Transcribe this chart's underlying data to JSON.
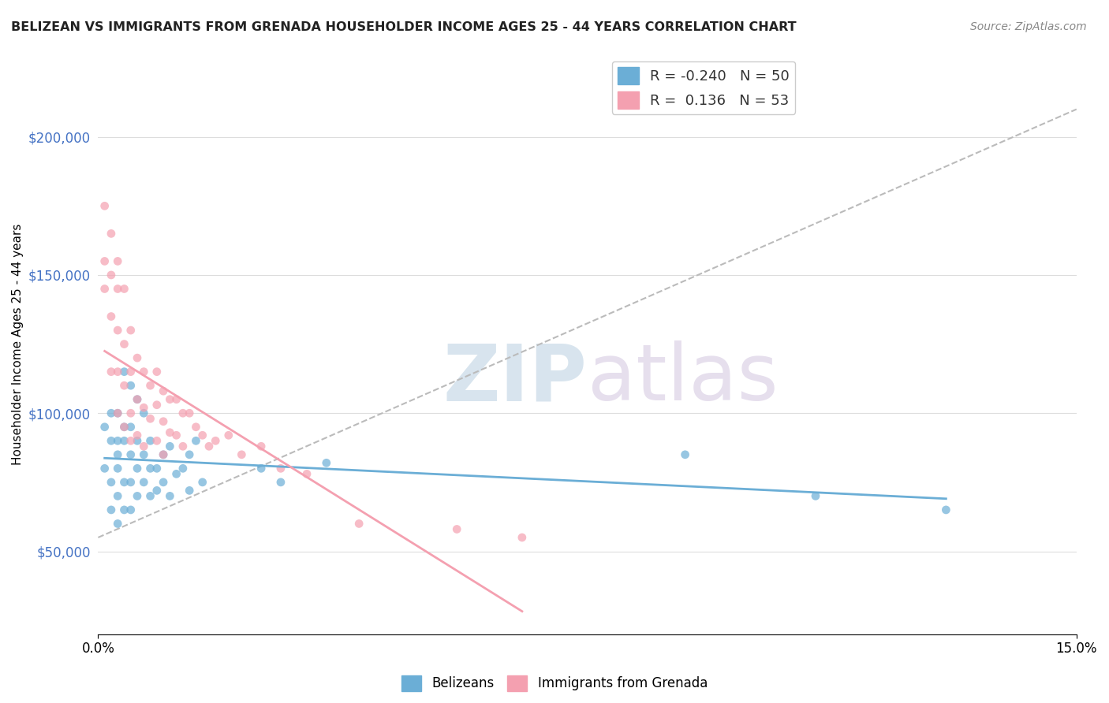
{
  "title": "BELIZEAN VS IMMIGRANTS FROM GRENADA HOUSEHOLDER INCOME AGES 25 - 44 YEARS CORRELATION CHART",
  "source_text": "Source: ZipAtlas.com",
  "xlabel": "",
  "ylabel": "Householder Income Ages 25 - 44 years",
  "xlim": [
    0.0,
    0.15
  ],
  "ylim": [
    20000,
    230000
  ],
  "yticks": [
    50000,
    100000,
    150000,
    200000
  ],
  "ytick_labels": [
    "$50,000",
    "$100,000",
    "$150,000",
    "$200,000"
  ],
  "xticks": [
    0.0,
    0.15
  ],
  "xtick_labels": [
    "0.0%",
    "15.0%"
  ],
  "watermark_zip": "ZIP",
  "watermark_atlas": "atlas",
  "belizean_color": "#6baed6",
  "grenada_color": "#f4a0b0",
  "belizean_r": -0.24,
  "grenada_r": 0.136,
  "background_color": "#ffffff",
  "grid_color": "#dddddd",
  "belizean_x": [
    0.001,
    0.001,
    0.002,
    0.002,
    0.002,
    0.002,
    0.003,
    0.003,
    0.003,
    0.003,
    0.003,
    0.003,
    0.004,
    0.004,
    0.004,
    0.004,
    0.004,
    0.005,
    0.005,
    0.005,
    0.005,
    0.005,
    0.006,
    0.006,
    0.006,
    0.006,
    0.007,
    0.007,
    0.007,
    0.008,
    0.008,
    0.008,
    0.009,
    0.009,
    0.01,
    0.01,
    0.011,
    0.011,
    0.012,
    0.013,
    0.014,
    0.014,
    0.015,
    0.016,
    0.025,
    0.028,
    0.035,
    0.09,
    0.11,
    0.13
  ],
  "belizean_y": [
    95000,
    80000,
    100000,
    90000,
    75000,
    65000,
    100000,
    90000,
    85000,
    80000,
    70000,
    60000,
    115000,
    95000,
    90000,
    75000,
    65000,
    110000,
    95000,
    85000,
    75000,
    65000,
    105000,
    90000,
    80000,
    70000,
    100000,
    85000,
    75000,
    90000,
    80000,
    70000,
    80000,
    72000,
    85000,
    75000,
    88000,
    70000,
    78000,
    80000,
    85000,
    72000,
    90000,
    75000,
    80000,
    75000,
    82000,
    85000,
    70000,
    65000
  ],
  "grenada_x": [
    0.001,
    0.001,
    0.001,
    0.002,
    0.002,
    0.002,
    0.002,
    0.003,
    0.003,
    0.003,
    0.003,
    0.003,
    0.004,
    0.004,
    0.004,
    0.004,
    0.005,
    0.005,
    0.005,
    0.005,
    0.006,
    0.006,
    0.006,
    0.007,
    0.007,
    0.007,
    0.008,
    0.008,
    0.009,
    0.009,
    0.009,
    0.01,
    0.01,
    0.01,
    0.011,
    0.011,
    0.012,
    0.012,
    0.013,
    0.013,
    0.014,
    0.015,
    0.016,
    0.017,
    0.018,
    0.02,
    0.022,
    0.025,
    0.028,
    0.032,
    0.04,
    0.055,
    0.065
  ],
  "grenada_y": [
    175000,
    155000,
    145000,
    165000,
    150000,
    135000,
    115000,
    155000,
    145000,
    130000,
    115000,
    100000,
    145000,
    125000,
    110000,
    95000,
    130000,
    115000,
    100000,
    90000,
    120000,
    105000,
    92000,
    115000,
    102000,
    88000,
    110000,
    98000,
    115000,
    103000,
    90000,
    108000,
    97000,
    85000,
    105000,
    93000,
    105000,
    92000,
    100000,
    88000,
    100000,
    95000,
    92000,
    88000,
    90000,
    92000,
    85000,
    88000,
    80000,
    78000,
    60000,
    58000,
    55000
  ]
}
